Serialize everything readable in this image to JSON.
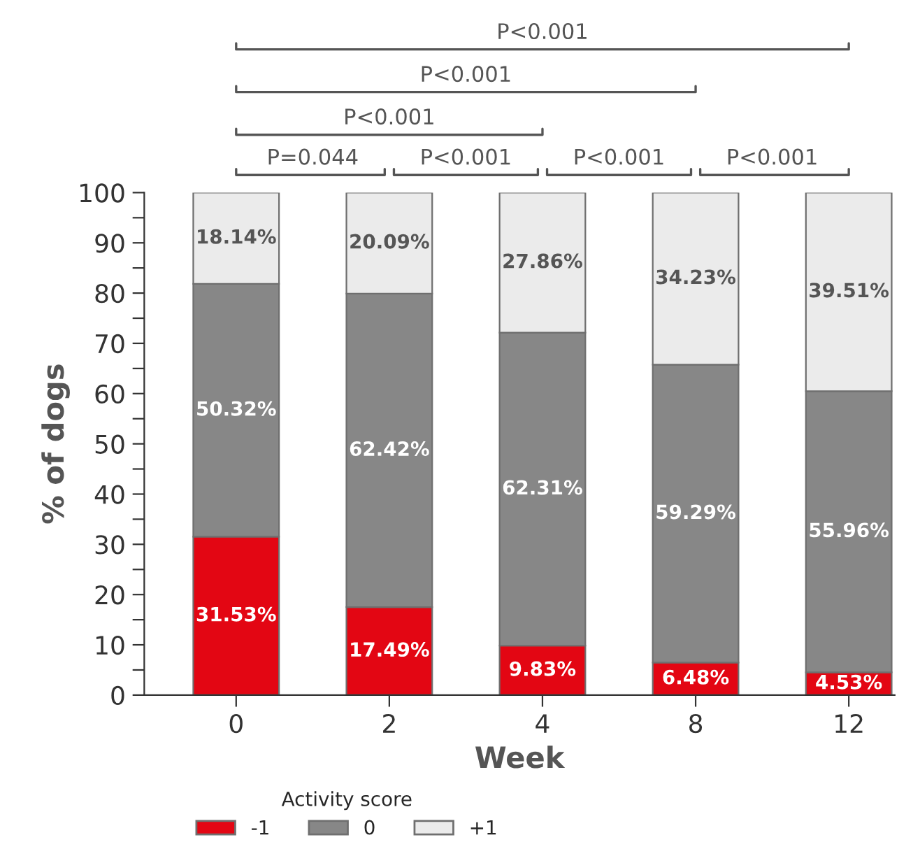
{
  "chart_data": {
    "type": "bar",
    "stacked": true,
    "xlabel": "Week",
    "ylabel": "% of dogs",
    "legend_title": "Activity score",
    "legend": "bottom",
    "categories": [
      "0",
      "2",
      "4",
      "8",
      "12"
    ],
    "series": [
      {
        "name": "-1",
        "color": "#e30613",
        "values": [
          31.53,
          17.49,
          9.83,
          6.48,
          4.53
        ],
        "value_labels": [
          "31.53%",
          "17.49%",
          "9.83%",
          "6.48%",
          "4.53%"
        ]
      },
      {
        "name": "0",
        "color": "#878787",
        "values": [
          50.32,
          62.42,
          62.31,
          59.29,
          55.96
        ],
        "value_labels": [
          "50.32%",
          "62.42%",
          "62.31%",
          "59.29%",
          "55.96%"
        ]
      },
      {
        "name": "+1",
        "color": "#ebebeb",
        "values": [
          18.14,
          20.09,
          27.86,
          34.23,
          39.51
        ],
        "value_labels": [
          "18.14%",
          "20.09%",
          "27.86%",
          "34.23%",
          "39.51%"
        ]
      }
    ],
    "ylim": [
      0,
      100
    ],
    "yticks": [
      0,
      {
        "value": 5,
        "label": null
      },
      10,
      {
        "value": 15,
        "label": null
      },
      20,
      {
        "value": 25,
        "label": null
      },
      30,
      {
        "value": 35,
        "label": null
      },
      40,
      {
        "value": 45,
        "label": null
      },
      50,
      {
        "value": 55,
        "label": null
      },
      60,
      {
        "value": 65,
        "label": null
      },
      70,
      {
        "value": 75,
        "label": null
      },
      80,
      {
        "value": 85,
        "label": null
      },
      90,
      {
        "value": 95,
        "label": null
      },
      100
    ],
    "grid": false,
    "annotations": [
      "P=0.044",
      "P<0.001",
      "P<0.001",
      "P<0.001",
      "P<0.001",
      "P<0.001",
      "P<0.001"
    ]
  }
}
